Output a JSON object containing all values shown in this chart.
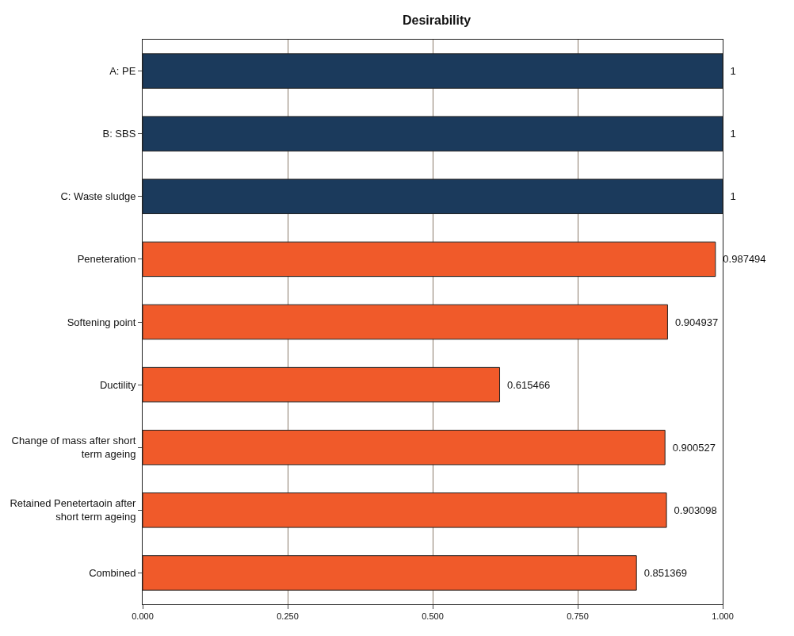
{
  "chart_data": {
    "type": "bar",
    "orientation": "horizontal",
    "title": "Desirability",
    "categories": [
      "A: PE",
      "B: SBS",
      "C: Waste sludge",
      "Peneteration",
      "Softening point",
      "Ductility",
      "Change of mass after short term ageing",
      "Retained Penetertaoin after short term ageing",
      "Combined"
    ],
    "values": [
      1,
      1,
      1,
      0.987494,
      0.904937,
      0.615466,
      0.900527,
      0.903098,
      0.851369
    ],
    "colors": [
      "#1b3a5c",
      "#1b3a5c",
      "#1b3a5c",
      "#f05a2a",
      "#f05a2a",
      "#f05a2a",
      "#f05a2a",
      "#f05a2a",
      "#f05a2a"
    ],
    "value_labels": [
      "1",
      "1",
      "1",
      "0.987494",
      "0.904937",
      "0.615466",
      "0.900527",
      "0.903098",
      "0.851369"
    ],
    "xlim": [
      0,
      1
    ],
    "xticks": [
      {
        "value": 0,
        "label": "0.000"
      },
      {
        "value": 0.25,
        "label": "0.250"
      },
      {
        "value": 0.5,
        "label": "0.500"
      },
      {
        "value": 0.75,
        "label": "0.750"
      },
      {
        "value": 1,
        "label": "1.000"
      }
    ],
    "grid": "x"
  }
}
